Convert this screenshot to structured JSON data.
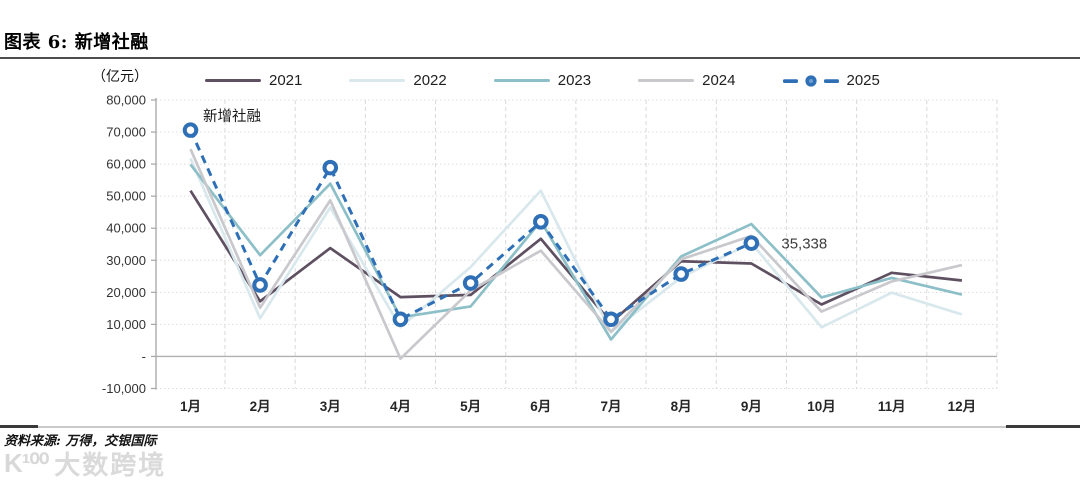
{
  "page": {
    "title": "图表 6: 新增社融",
    "source": "资料来源: 万得，交银国际",
    "watermark_logo": "K¹⁰⁰",
    "watermark": "大数跨境"
  },
  "chart_data": {
    "type": "line",
    "title": "图表 6: 新增社融",
    "unit_label": "（亿元）",
    "inplot_label": "新增社融",
    "categories": [
      "1月",
      "2月",
      "3月",
      "4月",
      "5月",
      "6月",
      "7月",
      "8月",
      "9月",
      "10月",
      "11月",
      "12月"
    ],
    "series": [
      {
        "name": "2021",
        "color": "#5e5061",
        "dashed": false,
        "marker": false,
        "values": [
          51700,
          17200,
          33800,
          18500,
          19200,
          36700,
          10600,
          29700,
          29000,
          16200,
          26100,
          23700
        ]
      },
      {
        "name": "2022",
        "color": "#d8e8ec",
        "dashed": false,
        "marker": false,
        "values": [
          61800,
          11900,
          46500,
          9100,
          27900,
          51700,
          7600,
          24700,
          35400,
          9100,
          19900,
          13100
        ]
      },
      {
        "name": "2023",
        "color": "#8cbfc7",
        "dashed": false,
        "marker": false,
        "values": [
          59900,
          31600,
          53900,
          12200,
          15600,
          42200,
          5300,
          31200,
          41300,
          18400,
          24500,
          19300
        ]
      },
      {
        "name": "2024",
        "color": "#c8c8cd",
        "dashed": false,
        "marker": false,
        "values": [
          64700,
          15200,
          48700,
          -700,
          20600,
          33000,
          7700,
          30300,
          37600,
          14000,
          23400,
          28500
        ]
      },
      {
        "name": "2025",
        "color": "#2e6fb6",
        "dashed": true,
        "marker": true,
        "values": [
          70600,
          22300,
          58900,
          11600,
          22900,
          42000,
          11600,
          25700,
          35338
        ]
      }
    ],
    "annotation": {
      "text": "35,338",
      "series": "2025",
      "month_index": 8,
      "value": 35338
    },
    "y_axis": {
      "min": -10000,
      "max": 80000,
      "step": 10000,
      "tick_labels": [
        "80,000",
        "70,000",
        "60,000",
        "50,000",
        "40,000",
        "30,000",
        "20,000",
        "10,000",
        "-",
        "-10,000"
      ]
    },
    "x_axis_label": "",
    "legend_position": "top",
    "grid": true
  }
}
